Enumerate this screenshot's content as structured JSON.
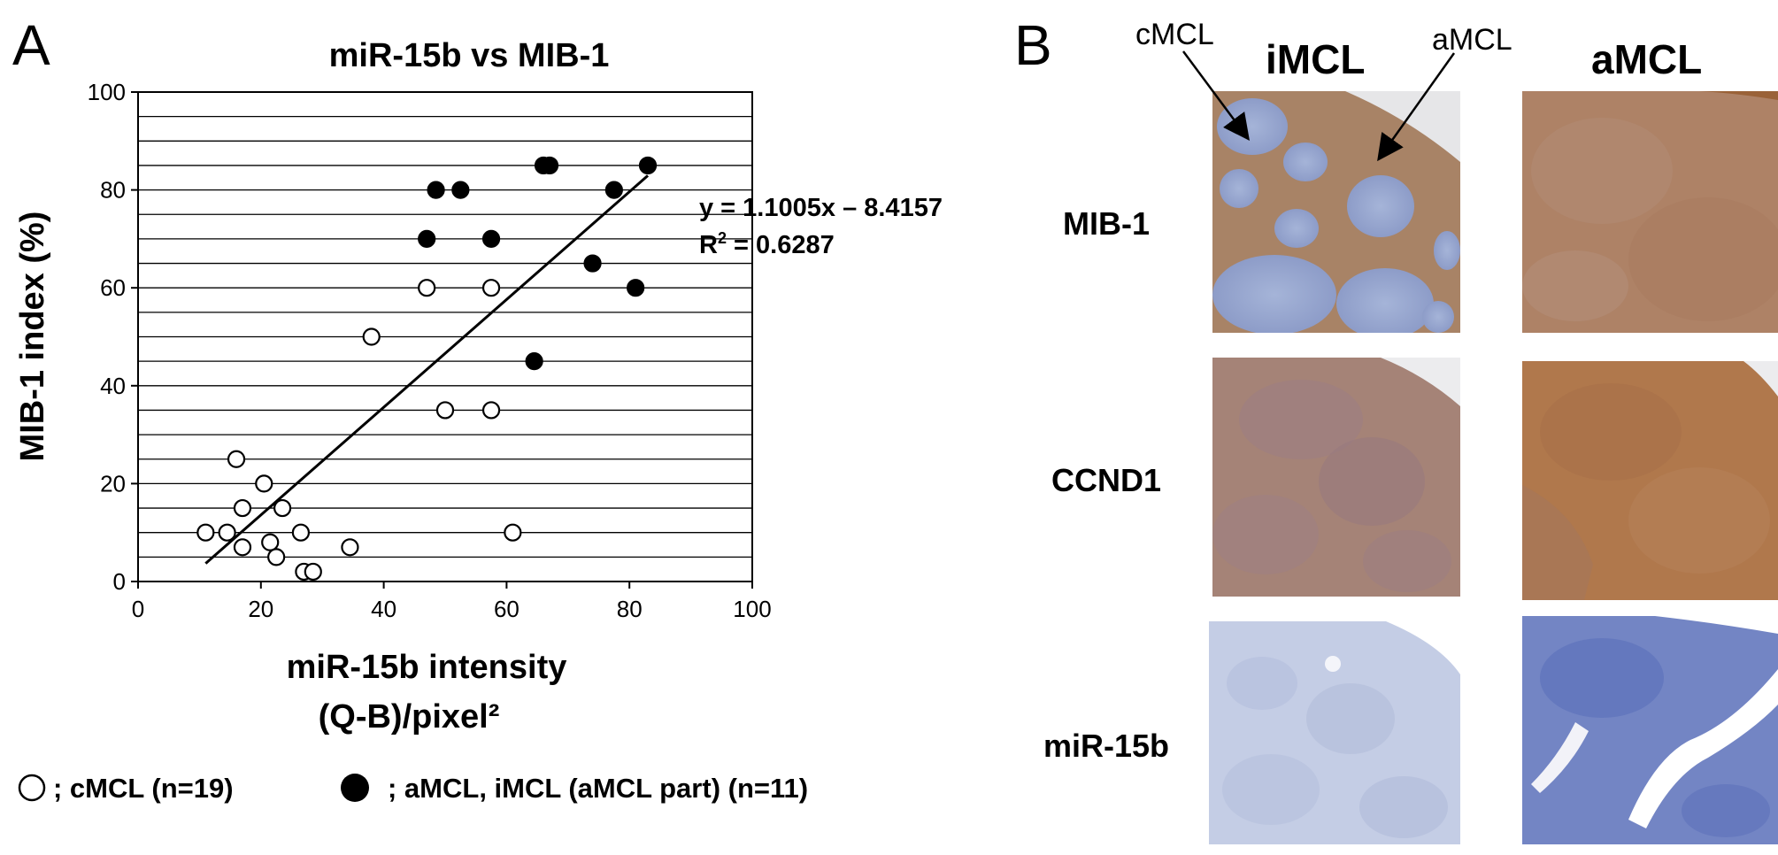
{
  "panel_a_letter": "A",
  "panel_b_letter": "B",
  "chart_data": {
    "type": "scatter",
    "title": "miR-15b vs MIB-1",
    "xlabel_line1": "miR-15b intensity",
    "xlabel_line2": "(Q-B)/pixel²",
    "ylabel": "MIB-1 index (%)",
    "xlim": [
      0,
      100
    ],
    "ylim": [
      0,
      100
    ],
    "x_ticks": [
      0,
      20,
      40,
      60,
      80,
      100
    ],
    "y_ticks": [
      0,
      20,
      40,
      60,
      80,
      100
    ],
    "horizontal_grid_step": 5,
    "series": [
      {
        "name": "cMCL (n=19)",
        "marker": "open-circle",
        "points": [
          [
            11,
            10
          ],
          [
            14.5,
            10
          ],
          [
            16,
            25
          ],
          [
            17,
            15
          ],
          [
            17,
            7
          ],
          [
            20.5,
            20
          ],
          [
            21.5,
            8
          ],
          [
            22.5,
            5
          ],
          [
            23.5,
            15
          ],
          [
            26.5,
            10
          ],
          [
            27,
            2
          ],
          [
            28.5,
            2
          ],
          [
            34.5,
            7
          ],
          [
            38,
            50
          ],
          [
            47,
            60
          ],
          [
            50,
            35
          ],
          [
            57.5,
            60
          ],
          [
            57.5,
            35
          ],
          [
            61,
            10
          ]
        ]
      },
      {
        "name": "aMCL, iMCL (aMCL part)  (n=11)",
        "marker": "filled-circle",
        "points": [
          [
            47,
            70
          ],
          [
            48.5,
            80
          ],
          [
            52.5,
            80
          ],
          [
            57.5,
            70
          ],
          [
            64.5,
            45
          ],
          [
            66,
            85
          ],
          [
            67,
            85
          ],
          [
            74,
            65
          ],
          [
            77.5,
            80
          ],
          [
            81,
            60
          ],
          [
            83,
            85
          ]
        ]
      }
    ],
    "trendline": {
      "slope": 1.1005,
      "intercept": -8.4157,
      "x_start": 11,
      "x_end": 83,
      "equation": "y = 1.1005x – 8.4157",
      "r2_label": "R",
      "r2_sup": "2",
      "r2_value": " = 0.6287"
    },
    "legend": {
      "open_label": "; cMCL (n=19)",
      "filled_label": "; aMCL, iMCL (aMCL part)  (n=11)"
    }
  },
  "panel_b": {
    "columns": [
      "iMCL",
      "aMCL"
    ],
    "rows": [
      "MIB-1",
      "CCND1",
      "miR-15b"
    ],
    "annotations": {
      "left": "cMCL",
      "right": "aMCL"
    }
  }
}
